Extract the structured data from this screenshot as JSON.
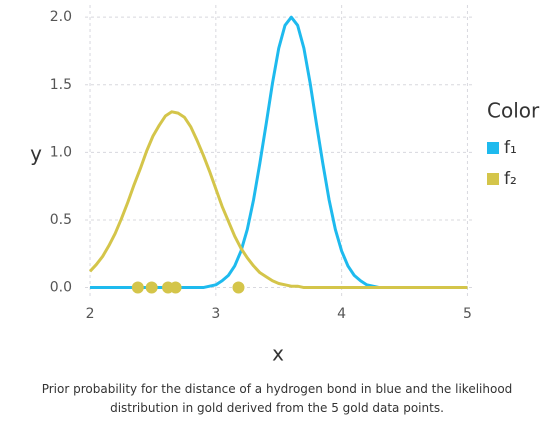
{
  "chart_data": {
    "type": "line",
    "x_label": "x",
    "y_label": "y",
    "x": [
      2.0,
      2.05,
      2.1,
      2.15,
      2.2,
      2.25,
      2.3,
      2.35,
      2.4,
      2.45,
      2.5,
      2.55,
      2.6,
      2.65,
      2.7,
      2.75,
      2.8,
      2.85,
      2.9,
      2.95,
      3.0,
      3.05,
      3.1,
      3.15,
      3.2,
      3.25,
      3.3,
      3.35,
      3.4,
      3.45,
      3.5,
      3.55,
      3.6,
      3.65,
      3.7,
      3.75,
      3.8,
      3.85,
      3.9,
      3.95,
      4.0,
      4.05,
      4.1,
      4.15,
      4.2,
      4.25,
      4.3,
      4.35,
      4.4,
      4.45,
      4.5,
      4.55,
      4.6,
      4.65,
      4.7,
      4.75,
      4.8,
      4.85,
      4.9,
      4.95,
      5.0
    ],
    "series": [
      {
        "name": "f₁",
        "color": "#1ebaee",
        "values": [
          0,
          0,
          0,
          0,
          0,
          0,
          0,
          0,
          0,
          0,
          0,
          0,
          0,
          0,
          0,
          0,
          0,
          0,
          0,
          0.01,
          0.02,
          0.05,
          0.09,
          0.16,
          0.27,
          0.43,
          0.65,
          0.92,
          1.21,
          1.51,
          1.77,
          1.94,
          2.0,
          1.94,
          1.77,
          1.51,
          1.21,
          0.92,
          0.65,
          0.43,
          0.27,
          0.16,
          0.09,
          0.05,
          0.02,
          0.01,
          0,
          0,
          0,
          0,
          0,
          0,
          0,
          0,
          0,
          0,
          0,
          0,
          0,
          0,
          0
        ]
      },
      {
        "name": "f₂",
        "color": "#d4c54a",
        "values": [
          0.12,
          0.17,
          0.23,
          0.31,
          0.4,
          0.51,
          0.63,
          0.76,
          0.88,
          1.01,
          1.12,
          1.2,
          1.27,
          1.3,
          1.29,
          1.26,
          1.19,
          1.09,
          0.98,
          0.86,
          0.73,
          0.6,
          0.49,
          0.38,
          0.29,
          0.22,
          0.16,
          0.11,
          0.08,
          0.05,
          0.03,
          0.02,
          0.01,
          0.01,
          0,
          0,
          0,
          0,
          0,
          0,
          0,
          0,
          0,
          0,
          0,
          0,
          0,
          0,
          0,
          0,
          0,
          0,
          0,
          0,
          0,
          0,
          0,
          0,
          0,
          0,
          0
        ]
      }
    ],
    "points": {
      "color": "#d4c54a",
      "x": [
        2.38,
        2.49,
        2.62,
        2.68,
        3.18
      ],
      "y": [
        0,
        0,
        0,
        0,
        0
      ]
    },
    "xlim": [
      1.96,
      5.06
    ],
    "ylim": [
      -0.07,
      2.09
    ],
    "xticks": [
      2,
      3,
      4,
      5
    ],
    "yticks": [
      {
        "value": 0,
        "label": "0.0"
      },
      {
        "value": 0.5,
        "label": "0.5"
      },
      {
        "value": 1,
        "label": "1.0"
      },
      {
        "value": 1.5,
        "label": "1.5"
      },
      {
        "value": 2,
        "label": "2.0"
      }
    ],
    "grid": true,
    "legend_title": "Color",
    "legend_position": "right",
    "caption": "Prior probability for the distance of a hydrogen bond in blue and the likelihood distribution in gold derived from the 5 gold data points."
  }
}
